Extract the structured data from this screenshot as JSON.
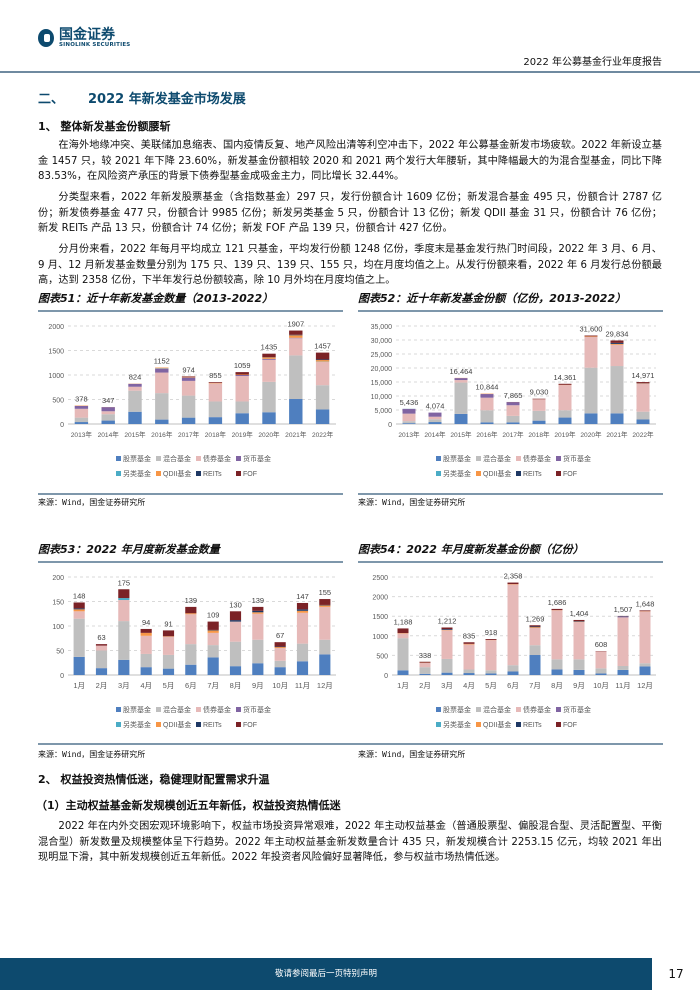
{
  "header": {
    "logo_cn": "国金证券",
    "logo_en": "SINOLINK SECURITIES",
    "report_title": "2022 年公募基金行业年度报告"
  },
  "section": {
    "number": "二、",
    "title": "2022 年新发基金市场发展"
  },
  "sub1": "1、 整体新发基金份额腰斩",
  "paragraphs": [
    "在海外地缘冲突、美联储加息缩表、国内疫情反复、地产风险出清等利空冲击下，2022 年公募基金新发市场疲软。2022 年新设立基金 1457 只，较 2021 年下降 23.60%，新发基金份额相较 2020 和 2021 两个发行大年腰斩，其中降幅最大的为混合型基金，同比下降 83.53%，在风险资产承压的背景下债券型基金成吸金主力，同比增长 32.44%。",
    "分类型来看，2022 年新发股票基金（含指数基金）297 只，发行份额合计 1609 亿份；新发混合基金 495 只，份额合计 2787 亿份；新发债券基金 477 只，份额合计 9985 亿份；新发另类基金 5 只，份额合计 13 亿份；新发 QDII 基金 31 只，份额合计 76 亿份；新发 REITs 产品 13 只，份额合计 74 亿份；新发 FOF 产品 139 只，份额合计 427 亿份。",
    "分月份来看，2022 年每月平均成立 121 只基金，平均发行份额 1248 亿份，季度末是基金发行热门时间段，2022 年 3 月、6 月、9 月、12 月新发基金数量分别为 175 只、139 只、139 只、155 只，均在月度均值之上。从发行份额来看，2022 年 6 月发行总份额最高，达到 2358 亿份，下半年发行总份额较高，除 10 月外均在月度均值之上。"
  ],
  "source": "来源：Wind，国金证券研究所",
  "sub2": "2、 权益投资热情低迷，稳健理财配置需求升温",
  "sub2_1": "（1）主动权益基金新发规模创近五年新低，权益投资热情低迷",
  "paragraph4": "2022 年在内外交困宏观环境影响下，权益市场投资异常艰难，2022 年主动权益基金（普通股票型、偏股混合型、灵活配置型、平衡混合型）新发数量及规模整体呈下行趋势。2022 年主动权益基金新发数量合计 435 只，新发规模合计 2253.15 亿元，均较 2021 年出现明显下滑，其中新发规模创近五年新低。2022 年投资者风险偏好显著降低，参与权益市场热情低迷。",
  "footer": {
    "disclaimer": "敬请参阅最后一页特别声明",
    "page": "17"
  },
  "chart_data": [
    {
      "type": "bar",
      "stacked": true,
      "title": "图表51：近十年新发基金数量（2013-2022）",
      "ylim": [
        0,
        2000
      ],
      "yticks": [
        "0",
        "500",
        "1000",
        "1500",
        "2000"
      ],
      "grid": true,
      "legend": "bottom",
      "categories": [
        "2013年",
        "2014年",
        "2015年",
        "2016年",
        "2017年",
        "2018年",
        "2019年",
        "2020年",
        "2021年",
        "2022年"
      ],
      "totals": [
        "378",
        "347",
        "824",
        "1152",
        "974",
        "855",
        "1059",
        "1435",
        "1907",
        "1457"
      ],
      "series": [
        {
          "name": "股票基金",
          "color": "#4f7fbf",
          "values": [
            40,
            70,
            250,
            90,
            130,
            140,
            220,
            240,
            510,
            297
          ]
        },
        {
          "name": "混合基金",
          "color": "#bfbfbf",
          "values": [
            90,
            130,
            430,
            540,
            450,
            320,
            240,
            620,
            890,
            495
          ]
        },
        {
          "name": "债券基金",
          "color": "#e6b9b8",
          "values": [
            180,
            60,
            80,
            420,
            300,
            370,
            520,
            450,
            350,
            477
          ]
        },
        {
          "name": "货币基金",
          "color": "#8064a2",
          "values": [
            60,
            85,
            60,
            80,
            70,
            0,
            20,
            20,
            10,
            0
          ]
        },
        {
          "name": "另类基金",
          "color": "#4bacc6",
          "values": [
            0,
            0,
            0,
            7,
            0,
            0,
            0,
            0,
            0,
            5
          ]
        },
        {
          "name": "QDII基金",
          "color": "#f79646",
          "values": [
            8,
            2,
            4,
            15,
            14,
            10,
            10,
            30,
            50,
            31
          ]
        },
        {
          "name": "REITs",
          "color": "#1f3864",
          "values": [
            0,
            0,
            0,
            0,
            0,
            0,
            0,
            5,
            11,
            13
          ]
        },
        {
          "name": "FOF",
          "color": "#7b2226",
          "values": [
            0,
            0,
            0,
            0,
            10,
            15,
            49,
            70,
            86,
            139
          ]
        }
      ]
    },
    {
      "type": "bar",
      "stacked": true,
      "title": "图表52：近十年新发基金份额（亿份，2013-2022）",
      "ylim": [
        0,
        35000
      ],
      "yticks": [
        "0",
        "5,000",
        "10,000",
        "15,000",
        "20,000",
        "25,000",
        "30,000",
        "35,000"
      ],
      "grid": true,
      "legend": "bottom",
      "categories": [
        "2013年",
        "2014年",
        "2015年",
        "2016年",
        "2017年",
        "2018年",
        "2019年",
        "2020年",
        "2021年",
        "2022年"
      ],
      "totals": [
        "5,436",
        "4,074",
        "16,464",
        "10,844",
        "7,865",
        "9,030",
        "14,361",
        "31,600",
        "29,834",
        "14,971"
      ],
      "series": [
        {
          "name": "股票基金",
          "color": "#4f7fbf",
          "values": [
            300,
            700,
            3600,
            600,
            600,
            1200,
            2300,
            3800,
            3800,
            1609
          ]
        },
        {
          "name": "混合基金",
          "color": "#bfbfbf",
          "values": [
            700,
            1000,
            11200,
            4300,
            2300,
            3500,
            2600,
            16300,
            16900,
            2787
          ]
        },
        {
          "name": "债券基金",
          "color": "#e6b9b8",
          "values": [
            2700,
            900,
            900,
            4500,
            3800,
            4100,
            9000,
            11000,
            7600,
            9985
          ]
        },
        {
          "name": "货币基金",
          "color": "#8064a2",
          "values": [
            1700,
            1474,
            700,
            1300,
            1100,
            0,
            0,
            0,
            0,
            0
          ]
        },
        {
          "name": "另类基金",
          "color": "#4bacc6",
          "values": [
            36,
            0,
            0,
            0,
            0,
            0,
            0,
            0,
            0,
            13
          ]
        },
        {
          "name": "QDII基金",
          "color": "#f79646",
          "values": [
            0,
            0,
            64,
            144,
            0,
            30,
            100,
            200,
            300,
            76
          ]
        },
        {
          "name": "REITs",
          "color": "#1f3864",
          "values": [
            0,
            0,
            0,
            0,
            0,
            0,
            0,
            0,
            364,
            74
          ]
        },
        {
          "name": "FOF",
          "color": "#7b2226",
          "values": [
            0,
            0,
            0,
            0,
            65,
            200,
            361,
            300,
            870,
            427
          ]
        }
      ]
    },
    {
      "type": "bar",
      "stacked": true,
      "title": "图表53：2022 年月度新发基金数量",
      "ylim": [
        0,
        200
      ],
      "yticks": [
        "0",
        "50",
        "100",
        "150",
        "200"
      ],
      "grid": true,
      "legend": "bottom",
      "categories": [
        "1月",
        "2月",
        "3月",
        "4月",
        "5月",
        "6月",
        "7月",
        "8月",
        "9月",
        "10月",
        "11月",
        "12月"
      ],
      "totals": [
        "148",
        "63",
        "175",
        "94",
        "91",
        "139",
        "109",
        "130",
        "139",
        "67",
        "147",
        "155"
      ],
      "series": [
        {
          "name": "股票基金",
          "color": "#4f7fbf",
          "values": [
            37,
            14,
            31,
            16,
            13,
            21,
            36,
            18,
            24,
            16,
            28,
            42
          ]
        },
        {
          "name": "混合基金",
          "color": "#bfbfbf",
          "values": [
            78,
            36,
            79,
            27,
            28,
            42,
            25,
            50,
            48,
            13,
            36,
            30
          ]
        },
        {
          "name": "债券基金",
          "color": "#e6b9b8",
          "values": [
            15,
            10,
            43,
            37,
            37,
            61,
            25,
            41,
            53,
            26,
            63,
            67
          ]
        },
        {
          "name": "货币基金",
          "color": "#8064a2",
          "values": [
            0,
            0,
            0,
            0,
            0,
            0,
            0,
            0,
            0,
            0,
            0,
            0
          ]
        },
        {
          "name": "另类基金",
          "color": "#4bacc6",
          "values": [
            0,
            0,
            4,
            0,
            0,
            0,
            0,
            0,
            0,
            0,
            0,
            0
          ]
        },
        {
          "name": "QDII基金",
          "color": "#f79646",
          "values": [
            4,
            0,
            0,
            6,
            1,
            2,
            5,
            0,
            3,
            2,
            4,
            3
          ]
        },
        {
          "name": "REITs",
          "color": "#1f3864",
          "values": [
            2,
            0,
            0,
            0,
            0,
            0,
            1,
            3,
            3,
            1,
            3,
            1
          ]
        },
        {
          "name": "FOF",
          "color": "#7b2226",
          "values": [
            12,
            3,
            18,
            8,
            12,
            13,
            17,
            18,
            8,
            9,
            13,
            12
          ]
        }
      ]
    },
    {
      "type": "bar",
      "stacked": true,
      "title": "图表54：2022 年月度新发基金份额（亿份）",
      "ylim": [
        0,
        2500
      ],
      "yticks": [
        "0",
        "500",
        "1000",
        "1500",
        "2000",
        "2500"
      ],
      "grid": true,
      "legend": "bottom",
      "categories": [
        "1月",
        "2月",
        "3月",
        "4月",
        "5月",
        "6月",
        "7月",
        "8月",
        "9月",
        "10月",
        "11月",
        "12月"
      ],
      "totals": [
        "1,188",
        "338",
        "1,212",
        "835",
        "918",
        "2,358",
        "1,269",
        "1,686",
        "1,404",
        "608",
        "1,507",
        "1,648"
      ],
      "series": [
        {
          "name": "股票基金",
          "color": "#4f7fbf",
          "values": [
            120,
            30,
            60,
            50,
            40,
            90,
            510,
            140,
            130,
            40,
            130,
            220
          ]
        },
        {
          "name": "混合基金",
          "color": "#bfbfbf",
          "values": [
            820,
            170,
            350,
            90,
            80,
            160,
            250,
            260,
            270,
            130,
            100,
            80
          ]
        },
        {
          "name": "债券基金",
          "color": "#e6b9b8",
          "values": [
            120,
            110,
            730,
            640,
            770,
            2060,
            440,
            1250,
            950,
            430,
            1240,
            1320
          ]
        },
        {
          "name": "货币基金",
          "color": "#8064a2",
          "values": [
            0,
            0,
            0,
            0,
            0,
            0,
            0,
            0,
            0,
            0,
            20,
            0
          ]
        },
        {
          "name": "另类基金",
          "color": "#4bacc6",
          "values": [
            0,
            0,
            0,
            0,
            0,
            0,
            0,
            0,
            0,
            0,
            0,
            0
          ]
        },
        {
          "name": "QDII基金",
          "color": "#f79646",
          "values": [
            10,
            5,
            10,
            15,
            5,
            10,
            20,
            6,
            10,
            0,
            0,
            8
          ]
        },
        {
          "name": "REITs",
          "color": "#1f3864",
          "values": [
            0,
            0,
            20,
            0,
            0,
            0,
            19,
            0,
            14,
            0,
            10,
            0
          ]
        },
        {
          "name": "FOF",
          "color": "#7b2226",
          "values": [
            118,
            23,
            42,
            40,
            23,
            38,
            30,
            30,
            30,
            8,
            7,
            20
          ]
        }
      ]
    }
  ]
}
